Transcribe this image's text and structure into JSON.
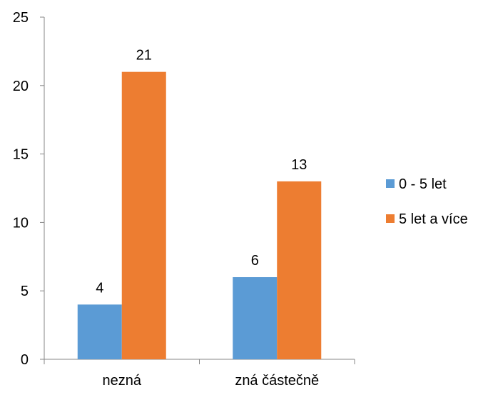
{
  "chart_data": {
    "type": "bar",
    "categories": [
      "nezná",
      "zná částečně"
    ],
    "series": [
      {
        "name": "0 - 5 let",
        "values": [
          4,
          6
        ],
        "color": "#5B9BD5"
      },
      {
        "name": "5 let a více",
        "values": [
          21,
          13
        ],
        "color": "#ED7D31"
      }
    ],
    "ylim": [
      0,
      25
    ],
    "yticks": [
      0,
      5,
      10,
      15,
      20,
      25
    ],
    "ytick_labels": [
      "0",
      "5",
      "10",
      "15",
      "20",
      "25"
    ],
    "data_labels": true,
    "grid": false,
    "legend_position": "right",
    "title": "",
    "xlabel": "",
    "ylabel": ""
  }
}
